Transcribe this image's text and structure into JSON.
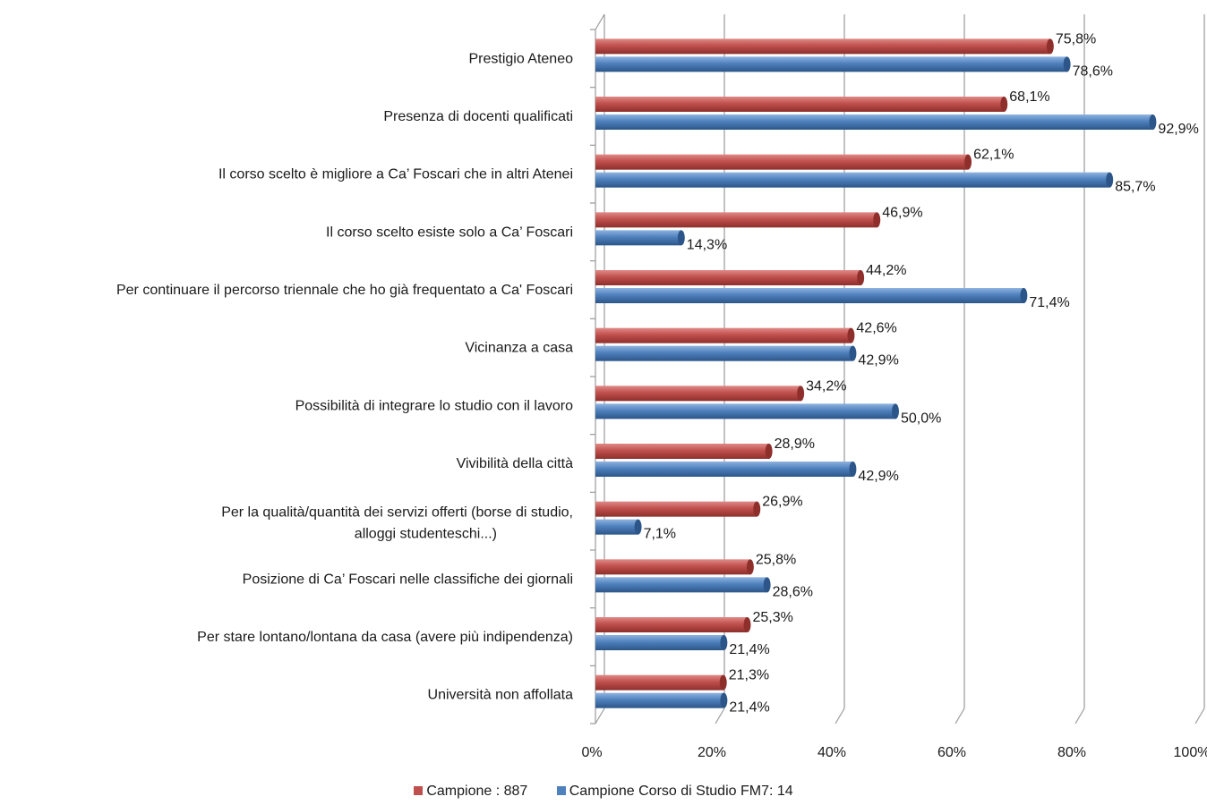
{
  "chart_data": {
    "type": "bar",
    "orientation": "horizontal",
    "categories": [
      "Prestigio Ateneo",
      "Presenza di docenti qualificati",
      "Il corso scelto è migliore a Ca’ Foscari che in altri Atenei",
      "Il corso scelto esiste solo a Ca’ Foscari",
      "Per continuare il percorso triennale che ho già frequentato a Ca' Foscari",
      "Vicinanza a casa",
      "Possibilità di integrare lo studio con il lavoro",
      "Vivibilità della città",
      "Per la qualità/quantità dei servizi offerti (borse di studio, alloggi studenteschi...)",
      "Posizione di Ca’ Foscari nelle classifiche dei giornali",
      "Per stare lontano/lontana da casa (avere più indipendenza)",
      "Università non affollata"
    ],
    "series": [
      {
        "name": "Campione : 887",
        "color": "#c0504d",
        "values": [
          75.8,
          68.1,
          62.1,
          46.9,
          44.2,
          42.6,
          34.2,
          28.9,
          26.9,
          25.8,
          25.3,
          21.3
        ],
        "labels": [
          "75,8%",
          "68,1%",
          "62,1%",
          "46,9%",
          "44,2%",
          "42,6%",
          "34,2%",
          "28,9%",
          "26,9%",
          "25,8%",
          "25,3%",
          "21,3%"
        ]
      },
      {
        "name": "Campione Corso di Studio FM7: 14",
        "color": "#4f81bd",
        "values": [
          78.6,
          92.9,
          85.7,
          14.3,
          71.4,
          42.9,
          50.0,
          42.9,
          7.1,
          28.6,
          21.4,
          21.4
        ],
        "labels": [
          "78,6%",
          "92,9%",
          "85,7%",
          "14,3%",
          "71,4%",
          "42,9%",
          "50,0%",
          "42,9%",
          "7,1%",
          "28,6%",
          "21,4%",
          "21,4%"
        ]
      }
    ],
    "xlim": [
      0,
      100
    ],
    "xticks": [
      "0%",
      "20%",
      "40%",
      "60%",
      "80%",
      "100%"
    ],
    "grid": true,
    "legend_position": "bottom"
  }
}
